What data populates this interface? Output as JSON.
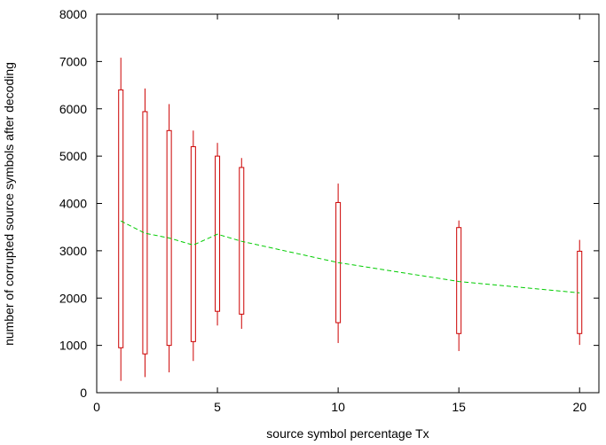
{
  "chart_data": {
    "type": "candlestick",
    "title": "",
    "xlabel": "source symbol percentage Tx",
    "ylabel": "number of corrupted source symbols after decoding",
    "xlim": [
      0,
      20.8
    ],
    "ylim": [
      0,
      8000
    ],
    "x_ticks": [
      0,
      5,
      10,
      15,
      20
    ],
    "y_ticks": [
      0,
      1000,
      2000,
      3000,
      4000,
      5000,
      6000,
      7000,
      8000
    ],
    "grid": false,
    "legend": "none",
    "box_color": "#cc0000",
    "mean_color": "#00cc00",
    "boxes": [
      {
        "x": 1,
        "min": 250,
        "q1": 950,
        "q3": 6400,
        "max": 7080
      },
      {
        "x": 2,
        "min": 330,
        "q1": 820,
        "q3": 5940,
        "max": 6430
      },
      {
        "x": 3,
        "min": 430,
        "q1": 1000,
        "q3": 5540,
        "max": 6100
      },
      {
        "x": 4,
        "min": 670,
        "q1": 1080,
        "q3": 5200,
        "max": 5540
      },
      {
        "x": 5,
        "min": 1420,
        "q1": 1720,
        "q3": 5000,
        "max": 5280
      },
      {
        "x": 6,
        "min": 1350,
        "q1": 1660,
        "q3": 4760,
        "max": 4960
      },
      {
        "x": 10,
        "min": 1050,
        "q1": 1480,
        "q3": 4020,
        "max": 4420
      },
      {
        "x": 15,
        "min": 880,
        "q1": 1250,
        "q3": 3490,
        "max": 3640
      },
      {
        "x": 20,
        "min": 1010,
        "q1": 1250,
        "q3": 2990,
        "max": 3230
      }
    ],
    "mean_line": {
      "x": [
        1,
        2,
        3,
        4,
        5,
        6,
        10,
        15,
        20
      ],
      "y": [
        3630,
        3370,
        3270,
        3120,
        3350,
        3200,
        2750,
        2350,
        2110
      ]
    }
  }
}
